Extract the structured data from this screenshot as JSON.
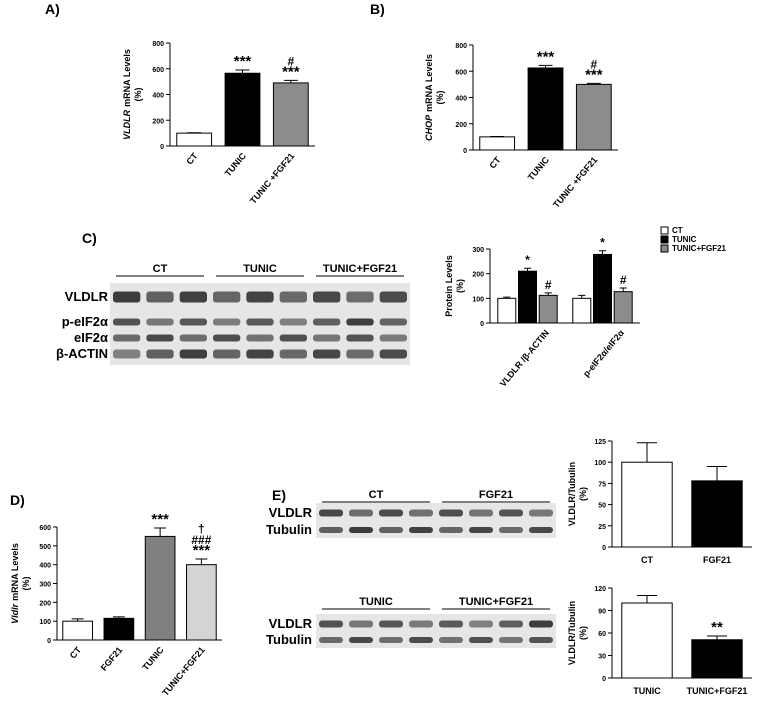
{
  "panels": [
    "A)",
    "B)",
    "C)",
    "D)",
    "E)"
  ],
  "chart_data": [
    {
      "type": "bar",
      "ylabel_gene": "VLDLR",
      "ylabel": "mRNA Levels",
      "ylabel2": "(%)",
      "categories": [
        "CT",
        "TUNIC",
        "TUNIC +FGF21"
      ],
      "values": [
        100,
        565,
        490
      ],
      "errors": [
        3,
        25,
        20
      ],
      "colors": [
        "#ffffff",
        "#000000",
        "#8c8c8c"
      ],
      "significance": [
        [],
        [
          "***"
        ],
        [
          "#",
          "***"
        ]
      ],
      "ylim": [
        0,
        800
      ],
      "yticks": [
        0,
        200,
        400,
        600,
        800
      ]
    },
    {
      "type": "bar",
      "ylabel_gene": "CHOP",
      "ylabel": "mRNA Levels",
      "ylabel2": "(%)",
      "categories": [
        "CT",
        "TUNIC",
        "TUNIC +FGF21"
      ],
      "values": [
        100,
        625,
        500
      ],
      "errors": [
        3,
        20,
        8
      ],
      "colors": [
        "#ffffff",
        "#000000",
        "#8c8c8c"
      ],
      "significance": [
        [],
        [
          "***"
        ],
        [
          "#",
          "***"
        ]
      ],
      "ylim": [
        0,
        800
      ],
      "yticks": [
        0,
        200,
        400,
        600,
        800
      ]
    },
    {
      "type": "grouped_bar",
      "ylabel": "Protein Levels",
      "ylabel2": "(%)",
      "categories": [
        "VLDLR /β-ACTIN",
        "p-eIF2α/eIF2α"
      ],
      "series": [
        {
          "name": "CT",
          "color": "#ffffff",
          "values": [
            100,
            100
          ],
          "errors": [
            5,
            12
          ],
          "significance": [
            null,
            null
          ]
        },
        {
          "name": "TUNIC",
          "color": "#000000",
          "values": [
            210,
            278
          ],
          "errors": [
            12,
            15
          ],
          "significance": [
            "*",
            "*"
          ]
        },
        {
          "name": "TUNIC+FGF21",
          "color": "#8c8c8c",
          "values": [
            112,
            127
          ],
          "errors": [
            10,
            15
          ],
          "significance": [
            "#",
            "#"
          ]
        }
      ],
      "ylim": [
        0,
        300
      ],
      "yticks": [
        0,
        100,
        200,
        300
      ]
    },
    {
      "type": "bar",
      "ylabel_gene": "Vldlr",
      "ylabel": "mRNA Levels",
      "ylabel2": "(%)",
      "categories": [
        "CT",
        "FGF21",
        "TUNIC",
        "TUNIC+FGF21"
      ],
      "values": [
        100,
        115,
        550,
        400
      ],
      "errors": [
        12,
        8,
        45,
        30
      ],
      "colors": [
        "#ffffff",
        "#000000",
        "#808080",
        "#d4d4d4"
      ],
      "significance": [
        [],
        [],
        [
          "***"
        ],
        [
          "†",
          "###",
          "***"
        ]
      ],
      "ylim": [
        0,
        600
      ],
      "yticks": [
        0,
        100,
        200,
        300,
        400,
        500,
        600
      ]
    },
    {
      "type": "bar",
      "ylabel": "VLDLR/Tubulin",
      "ylabel2": "(%)",
      "categories": [
        "CT",
        "FGF21"
      ],
      "values": [
        100,
        78
      ],
      "errors": [
        23,
        17
      ],
      "colors": [
        "#ffffff",
        "#000000"
      ],
      "significance": [
        [],
        []
      ],
      "ylim": [
        0,
        125
      ],
      "yticks": [
        0,
        25,
        50,
        75,
        100,
        125
      ]
    },
    {
      "type": "bar",
      "ylabel": "VLDLR/Tubulin",
      "ylabel2": "(%)",
      "categories": [
        "TUNIC",
        "TUNIC+FGF21"
      ],
      "values": [
        100,
        51
      ],
      "errors": [
        10,
        5
      ],
      "colors": [
        "#ffffff",
        "#000000"
      ],
      "significance": [
        [],
        [
          "**"
        ]
      ],
      "ylim": [
        0,
        120
      ],
      "yticks": [
        0,
        30,
        60,
        90,
        120
      ]
    }
  ],
  "blots": [
    {
      "groups": [
        "CT",
        "TUNIC",
        "TUNIC+FGF21"
      ],
      "rows": [
        "VLDLR",
        "p-eIF2α",
        "eIF2α",
        "β-ACTIN"
      ]
    },
    {
      "groups": [
        "CT",
        "FGF21"
      ],
      "rows": [
        "VLDLR",
        "Tubulin"
      ]
    },
    {
      "groups": [
        "TUNIC",
        "TUNIC+FGF21"
      ],
      "rows": [
        "VLDLR",
        "Tubulin"
      ]
    }
  ]
}
